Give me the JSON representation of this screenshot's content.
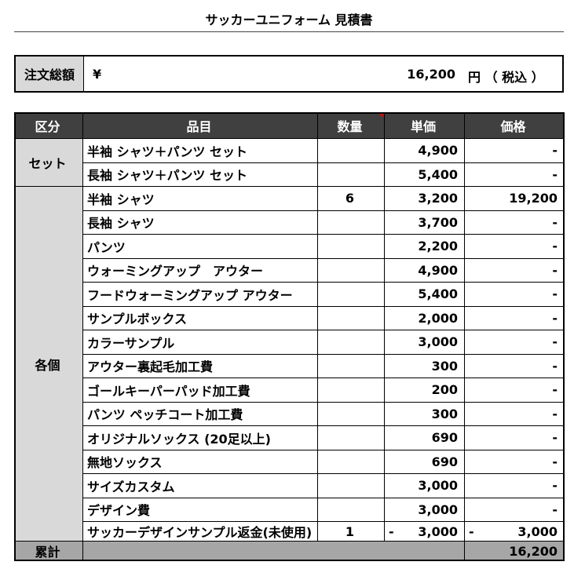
{
  "header": {
    "title": "サッカーユニフォーム 見積書"
  },
  "summary": {
    "label": "注文総額",
    "currency": "¥",
    "amount": "16,200",
    "unit": "円 （ 税込 ）"
  },
  "table": {
    "columns": [
      "区分",
      "品目",
      "数量",
      "単価",
      "価格"
    ],
    "groups": [
      {
        "name": "セット",
        "rows": [
          {
            "item": "半袖 シャツ＋パンツ セット",
            "unit": "4,900",
            "price": "-"
          },
          {
            "item": "長袖 シャツ＋パンツ セット",
            "unit": "5,400",
            "price": "-"
          }
        ]
      },
      {
        "name": "各個",
        "rows": [
          {
            "item": "半袖 シャツ",
            "qty": "6",
            "unit": "3,200",
            "price": "19,200"
          },
          {
            "item": "長袖 シャツ",
            "unit": "3,700",
            "price": "-"
          },
          {
            "item": "パンツ",
            "unit": "2,200",
            "price": "-"
          },
          {
            "item": "ウォーミングアップ　アウター",
            "unit": "4,900",
            "price": "-"
          },
          {
            "item": "フードウォーミングアップ アウター",
            "unit": "5,400",
            "price": "-"
          },
          {
            "item": "サンプルボックス",
            "unit": "2,000",
            "price": "-"
          },
          {
            "item": "カラーサンプル",
            "unit": "3,000",
            "price": "-"
          },
          {
            "item": "アウター裏起毛加工費",
            "unit": "300",
            "price": "-"
          },
          {
            "item": "ゴールキーパーパッド加工費",
            "unit": "200",
            "price": "-"
          },
          {
            "item": "パンツ ペッチコート加工費",
            "unit": "300",
            "price": "-"
          },
          {
            "item": "オリジナルソックス (20足以上)",
            "unit": "690",
            "price": "-"
          },
          {
            "item": "無地ソックス",
            "unit": "690",
            "price": "-"
          },
          {
            "item": "サイズカスタム",
            "unit": "3,000",
            "price": "-"
          },
          {
            "item": "デザイン費",
            "unit": "3,000",
            "price": "-"
          },
          {
            "item": "サッカーデザインサンプル返金(未使用)",
            "qty": "1",
            "unit_sign": "-",
            "unit": "3,000",
            "price_sign": "-",
            "price": "3,000"
          }
        ]
      }
    ],
    "total": {
      "label": "累計",
      "price": "16,200"
    }
  }
}
